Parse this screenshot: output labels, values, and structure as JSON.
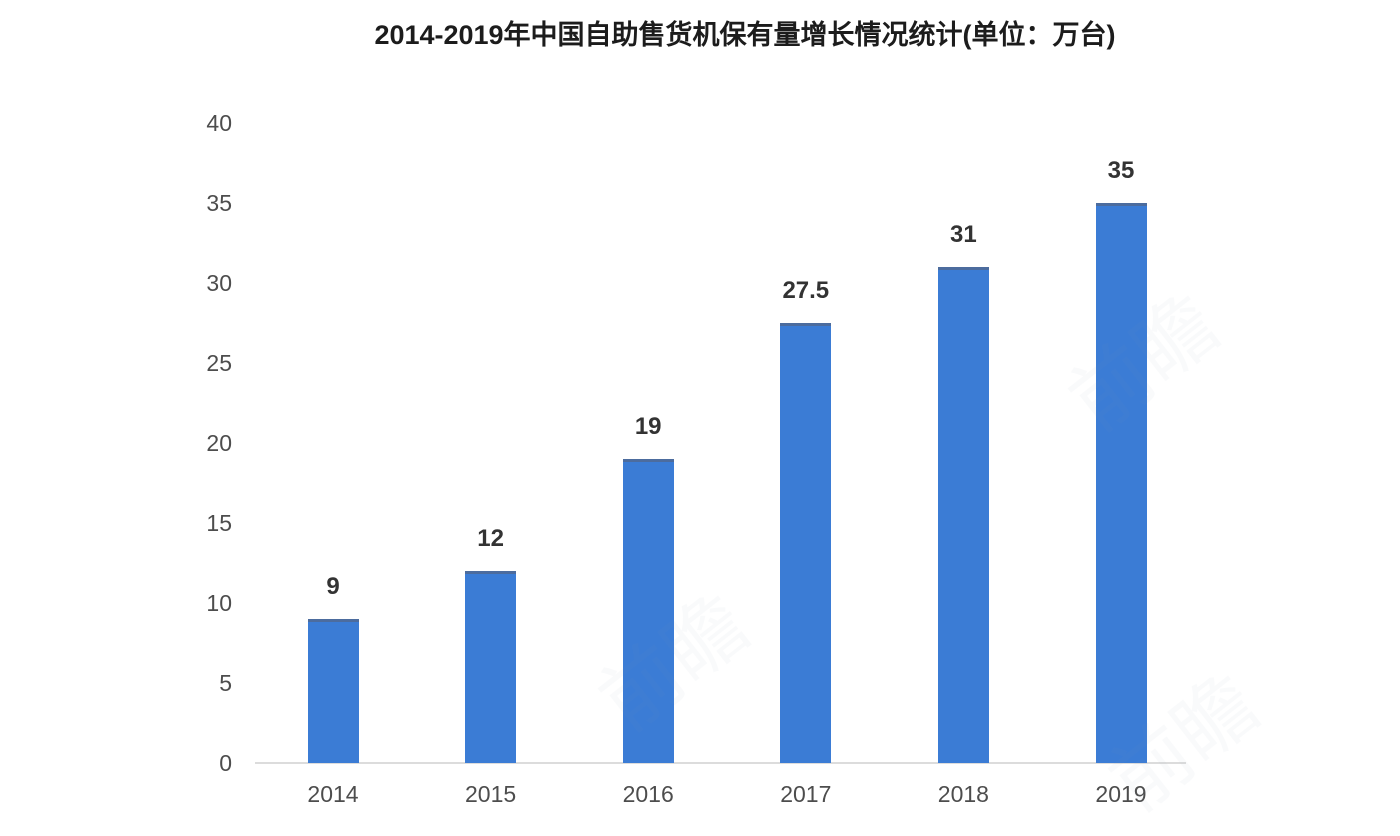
{
  "chart_data": {
    "type": "bar",
    "title": "2014-2019年中国自助售货机保有量增长情况统计(单位：万台)",
    "categories": [
      "2014",
      "2015",
      "2016",
      "2017",
      "2018",
      "2019"
    ],
    "values": [
      9,
      12,
      19,
      27.5,
      31,
      35
    ],
    "value_labels": [
      "9",
      "12",
      "19",
      "27.5",
      "31",
      "35"
    ],
    "xlabel": "",
    "ylabel": "",
    "ylim": [
      0,
      40
    ],
    "yticks": [
      0,
      5,
      10,
      15,
      20,
      25,
      30,
      35,
      40
    ],
    "grid": false,
    "legend": null,
    "bar_color": "#3b7cd5",
    "bar_top_edge_color": "#4c6c9e",
    "axis_line_color": "#dcdcdc",
    "tick_label_color": "#4d4d4d",
    "value_label_color": "#333333",
    "title_color": "#1c1c1c"
  },
  "watermark": {
    "text": "前瞻",
    "color": "#8fa0b5"
  }
}
